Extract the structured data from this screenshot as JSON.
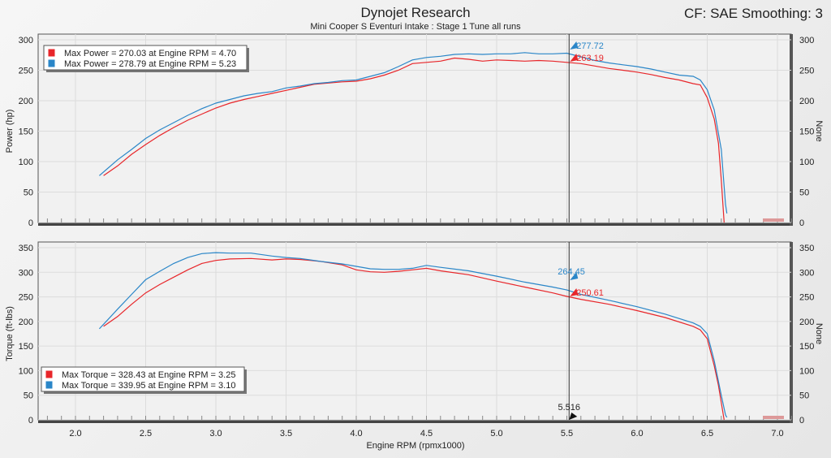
{
  "header": {
    "title": "Dynojet Research",
    "subtitle": "Mini Cooper S Eventuri Intake : Stage 1 Tune all runs",
    "cf_label": "CF: SAE Smoothing: 3"
  },
  "colors": {
    "run1": "#e8262a",
    "run2": "#2a86c8"
  },
  "chart_data": [
    {
      "type": "line",
      "ylabel": "Power (hp)",
      "ylabel_right": "None",
      "ylim": [
        0,
        300
      ],
      "yticks": [
        0,
        50,
        100,
        150,
        200,
        250,
        300
      ],
      "xlim": [
        1.75,
        7.1
      ],
      "grid": true,
      "legend": [
        "Max Power = 270.03 at Engine RPM = 4.70",
        "Max Power = 278.79 at Engine RPM = 5.23"
      ],
      "cursor": {
        "x": 5.516,
        "labels": [
          "263.19",
          "277.72"
        ]
      },
      "series": [
        {
          "x": [
            2.2,
            2.3,
            2.4,
            2.5,
            2.6,
            2.7,
            2.8,
            2.9,
            3.0,
            3.1,
            3.2,
            3.3,
            3.4,
            3.5,
            3.6,
            3.7,
            3.8,
            3.9,
            4.0,
            4.1,
            4.2,
            4.3,
            4.4,
            4.5,
            4.6,
            4.7,
            4.8,
            4.9,
            5.0,
            5.1,
            5.2,
            5.3,
            5.4,
            5.5,
            5.6,
            5.7,
            5.8,
            5.9,
            6.0,
            6.1,
            6.2,
            6.3,
            6.4,
            6.45,
            6.5,
            6.55,
            6.58,
            6.6,
            6.62
          ],
          "y": [
            77,
            93,
            112,
            128,
            143,
            156,
            168,
            178,
            188,
            196,
            202,
            207,
            212,
            217,
            222,
            227,
            229,
            231,
            232,
            236,
            242,
            250,
            261,
            263,
            265,
            270,
            268,
            265,
            267,
            266,
            265,
            266,
            265,
            263,
            261,
            257,
            253,
            250,
            247,
            243,
            238,
            234,
            228,
            226,
            205,
            170,
            130,
            70,
            0
          ]
        },
        {
          "x": [
            2.17,
            2.3,
            2.4,
            2.5,
            2.6,
            2.7,
            2.8,
            2.9,
            3.0,
            3.1,
            3.2,
            3.3,
            3.4,
            3.5,
            3.6,
            3.7,
            3.8,
            3.9,
            4.0,
            4.1,
            4.2,
            4.3,
            4.4,
            4.5,
            4.6,
            4.7,
            4.8,
            4.9,
            5.0,
            5.1,
            5.2,
            5.3,
            5.4,
            5.5,
            5.6,
            5.7,
            5.8,
            5.9,
            6.0,
            6.1,
            6.2,
            6.3,
            6.4,
            6.45,
            6.5,
            6.55,
            6.6,
            6.63,
            6.64
          ],
          "y": [
            77,
            103,
            120,
            138,
            152,
            164,
            176,
            187,
            196,
            202,
            208,
            212,
            215,
            221,
            224,
            228,
            230,
            233,
            234,
            240,
            246,
            256,
            267,
            271,
            273,
            276,
            277,
            276,
            277,
            277,
            279,
            277,
            277,
            278,
            272,
            266,
            262,
            259,
            256,
            252,
            247,
            242,
            240,
            234,
            218,
            185,
            120,
            30,
            15
          ]
        }
      ]
    },
    {
      "type": "line",
      "xlabel": "Engine RPM (rpmx1000)",
      "ylabel": "Torque (ft-lbs)",
      "ylabel_right": "None",
      "ylim": [
        0,
        350
      ],
      "yticks": [
        0,
        50,
        100,
        150,
        200,
        250,
        300,
        350
      ],
      "xlim": [
        1.75,
        7.1
      ],
      "xticks": [
        "2.0",
        "2.5",
        "3.0",
        "3.5",
        "4.0",
        "4.5",
        "5.0",
        "5.5",
        "6.0",
        "6.5",
        "7.0"
      ],
      "grid": true,
      "legend": [
        "Max Torque = 328.43 at Engine RPM = 3.25",
        "Max Torque = 339.95 at Engine RPM = 3.10"
      ],
      "cursor": {
        "x": 5.516,
        "labels": [
          "250.61",
          "264.45"
        ],
        "x_label": "5.516"
      },
      "series": [
        {
          "x": [
            2.2,
            2.3,
            2.4,
            2.5,
            2.6,
            2.7,
            2.8,
            2.9,
            3.0,
            3.1,
            3.25,
            3.4,
            3.5,
            3.6,
            3.75,
            3.9,
            4.0,
            4.1,
            4.2,
            4.3,
            4.4,
            4.5,
            4.6,
            4.8,
            5.0,
            5.2,
            5.4,
            5.5,
            5.6,
            5.8,
            6.0,
            6.2,
            6.4,
            6.45,
            6.5,
            6.55,
            6.58,
            6.6,
            6.62
          ],
          "y": [
            190,
            210,
            235,
            258,
            275,
            290,
            305,
            318,
            324,
            327,
            328,
            325,
            327,
            326,
            322,
            315,
            305,
            301,
            300,
            302,
            305,
            308,
            303,
            295,
            282,
            270,
            258,
            251,
            245,
            235,
            222,
            208,
            190,
            183,
            165,
            110,
            70,
            35,
            0
          ]
        },
        {
          "x": [
            2.17,
            2.3,
            2.4,
            2.5,
            2.6,
            2.7,
            2.8,
            2.9,
            3.0,
            3.1,
            3.25,
            3.4,
            3.5,
            3.6,
            3.75,
            3.9,
            4.0,
            4.1,
            4.2,
            4.3,
            4.4,
            4.5,
            4.6,
            4.8,
            5.0,
            5.2,
            5.4,
            5.5,
            5.6,
            5.8,
            6.0,
            6.2,
            6.4,
            6.45,
            6.5,
            6.55,
            6.6,
            6.63,
            6.64
          ],
          "y": [
            185,
            225,
            255,
            285,
            302,
            318,
            330,
            338,
            340,
            339,
            339,
            333,
            330,
            328,
            322,
            317,
            312,
            307,
            306,
            306,
            308,
            314,
            310,
            303,
            292,
            280,
            270,
            264,
            255,
            243,
            230,
            215,
            197,
            190,
            175,
            120,
            50,
            10,
            5
          ]
        }
      ]
    }
  ]
}
